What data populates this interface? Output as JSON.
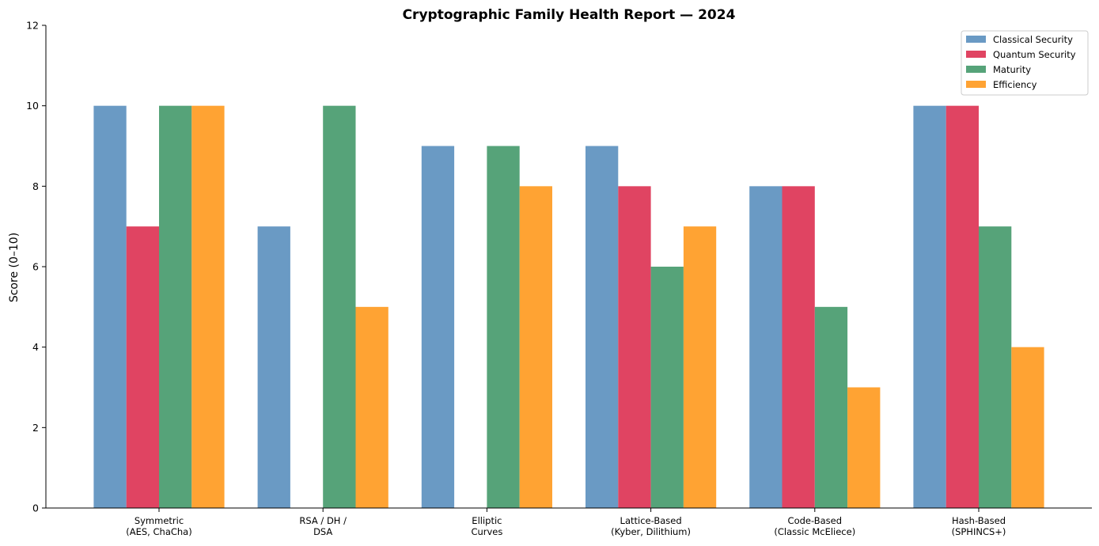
{
  "chart_data": {
    "type": "bar",
    "title": "Cryptographic Family Health Report — 2024",
    "xlabel": "",
    "ylabel": "Score (0–10)",
    "ylim": [
      0,
      12
    ],
    "yticks": [
      0,
      2,
      4,
      6,
      8,
      10,
      12
    ],
    "grid": false,
    "legend_position": "top-right",
    "categories": [
      [
        "Symmetric",
        "(AES, ChaCha)"
      ],
      [
        "RSA / DH /",
        "DSA"
      ],
      [
        "Elliptic",
        "Curves"
      ],
      [
        "Lattice-Based",
        "(Kyber, Dilithium)"
      ],
      [
        "Code-Based",
        "(Classic McEliece)"
      ],
      [
        "Hash-Based",
        "(SPHINCS+)"
      ]
    ],
    "series": [
      {
        "name": "Classical Security",
        "color": "#6a9ac4",
        "values": [
          10,
          7,
          9,
          9,
          8,
          10
        ]
      },
      {
        "name": "Quantum Security",
        "color": "#e04462",
        "values": [
          7,
          0,
          0,
          8,
          8,
          10
        ]
      },
      {
        "name": "Maturity",
        "color": "#56a379",
        "values": [
          10,
          10,
          9,
          6,
          5,
          7
        ]
      },
      {
        "name": "Efficiency",
        "color": "#ffa333",
        "values": [
          10,
          5,
          8,
          7,
          3,
          4
        ]
      }
    ]
  }
}
